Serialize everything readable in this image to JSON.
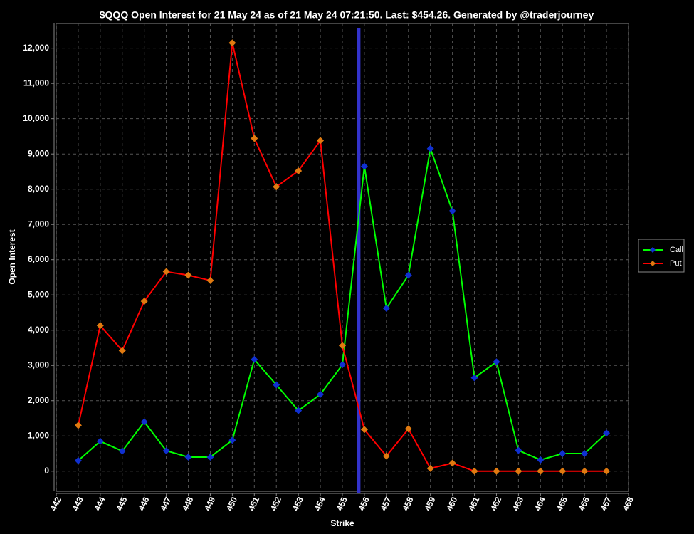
{
  "chart_data": {
    "type": "line",
    "title": "$QQQ Open Interest for 21 May 24 as of 21 May 24 07:21:50.  Last: $454.26.  Generated by @traderjourney",
    "x_label": "Strike",
    "y_label": "Open Interest",
    "x": [
      443,
      444,
      445,
      446,
      447,
      448,
      449,
      450,
      451,
      452,
      453,
      454,
      455,
      456,
      457,
      458,
      459,
      460,
      461,
      462,
      463,
      464,
      465,
      466,
      467
    ],
    "series": [
      {
        "name": "Call",
        "color": "#00ff00",
        "marker_color": "#1030d0",
        "values": [
          300,
          850,
          570,
          1400,
          580,
          400,
          400,
          880,
          3170,
          2450,
          1720,
          2180,
          3020,
          8650,
          4620,
          5560,
          9150,
          7380,
          2650,
          3100,
          590,
          320,
          500,
          500,
          1080
        ]
      },
      {
        "name": "Put",
        "color": "#ff0000",
        "marker_color": "#e07a10",
        "values": [
          1300,
          4130,
          3420,
          4820,
          5660,
          5560,
          5410,
          12150,
          9440,
          8070,
          8520,
          9380,
          3560,
          1180,
          430,
          1200,
          80,
          230,
          0,
          0,
          0,
          0,
          0,
          0,
          0
        ]
      }
    ],
    "vline": 455.74,
    "vline_color": "#3333cc",
    "xlim": [
      442,
      468
    ],
    "xticks": [
      442,
      443,
      444,
      445,
      446,
      447,
      448,
      449,
      450,
      451,
      452,
      453,
      454,
      455,
      456,
      457,
      458,
      459,
      460,
      461,
      462,
      463,
      464,
      465,
      466,
      467,
      468
    ],
    "ylim": [
      -570,
      12700
    ],
    "yticks": [
      0,
      {
        "value": 1000,
        "label": "1,000"
      },
      {
        "value": 2000,
        "label": "2,000"
      },
      {
        "value": 3000,
        "label": "3,000"
      },
      {
        "value": 4000,
        "label": "4,000"
      },
      {
        "value": 5000,
        "label": "5,000"
      },
      {
        "value": 6000,
        "label": "6,000"
      },
      {
        "value": 7000,
        "label": "7,000"
      },
      {
        "value": 8000,
        "label": "8,000"
      },
      {
        "value": 9000,
        "label": "9,000"
      },
      {
        "value": 10000,
        "label": "10,000"
      },
      {
        "value": 11000,
        "label": "11,000"
      },
      {
        "value": 12000,
        "label": "12,000"
      }
    ],
    "grid": true,
    "legend": "right"
  }
}
